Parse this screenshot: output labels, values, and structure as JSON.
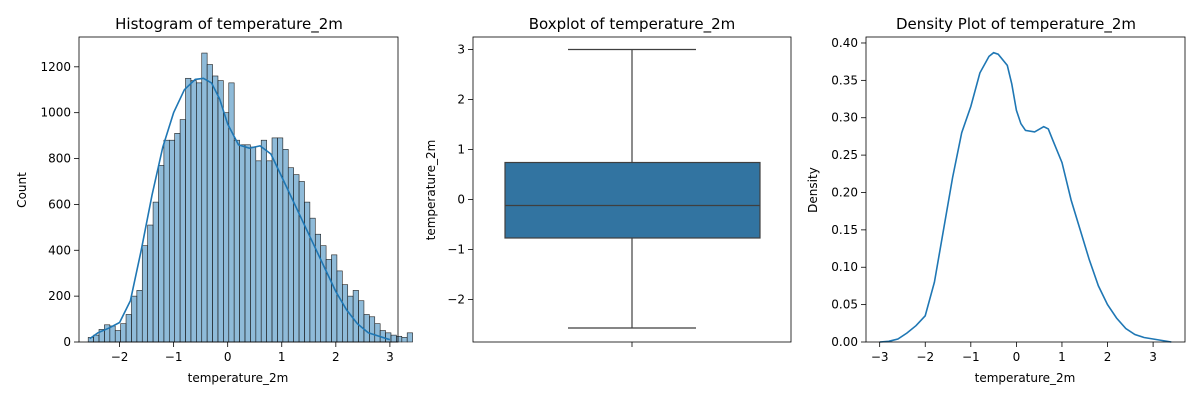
{
  "chart_data": [
    {
      "type": "bar",
      "title": "Histogram of temperature_2m",
      "xlabel": "temperature_2m",
      "ylabel": "Count",
      "xlim": [
        -2.75,
        3.15
      ],
      "ylim": [
        0,
        1330
      ],
      "xticks": [
        -2,
        -1,
        0,
        1,
        2,
        3
      ],
      "yticks": [
        0,
        200,
        400,
        600,
        800,
        1000,
        1200
      ],
      "bin_start": -2.58,
      "bin_width": 0.1,
      "values": [
        20,
        30,
        55,
        75,
        70,
        50,
        80,
        120,
        200,
        225,
        420,
        510,
        610,
        770,
        880,
        880,
        910,
        970,
        1150,
        1140,
        1130,
        1260,
        1210,
        1160,
        1140,
        1000,
        1130,
        880,
        860,
        860,
        850,
        790,
        880,
        790,
        890,
        890,
        840,
        760,
        730,
        700,
        610,
        540,
        470,
        420,
        360,
        380,
        310,
        250,
        200,
        225,
        180,
        120,
        110,
        80,
        50,
        40,
        30,
        25,
        20,
        40
      ],
      "kde": {
        "x": [
          -2.55,
          -2.4,
          -2.2,
          -2.0,
          -1.8,
          -1.6,
          -1.4,
          -1.2,
          -1.0,
          -0.8,
          -0.6,
          -0.45,
          -0.3,
          -0.15,
          0.0,
          0.2,
          0.4,
          0.6,
          0.8,
          1.0,
          1.2,
          1.4,
          1.6,
          1.8,
          2.0,
          2.2,
          2.4,
          2.6,
          2.8,
          3.0
        ],
        "y": [
          15,
          40,
          60,
          85,
          180,
          400,
          640,
          850,
          1000,
          1100,
          1145,
          1150,
          1130,
          1060,
          950,
          860,
          845,
          855,
          820,
          720,
          620,
          520,
          420,
          320,
          220,
          140,
          80,
          40,
          25,
          10
        ]
      }
    },
    {
      "type": "box",
      "title": "Boxplot of temperature_2m",
      "ylabel": "temperature_2m",
      "ylim": [
        -2.85,
        3.25
      ],
      "yticks": [
        -2,
        -1,
        0,
        1,
        2,
        3
      ],
      "whisker_low": -2.57,
      "q1": -0.77,
      "median": -0.12,
      "q3": 0.74,
      "whisker_high": 3.0
    },
    {
      "type": "line",
      "title": "Density Plot of temperature_2m",
      "xlabel": "temperature_2m",
      "ylabel": "Density",
      "xlim": [
        -3.3,
        3.7
      ],
      "ylim": [
        0,
        0.408
      ],
      "xticks": [
        -3,
        -2,
        -1,
        0,
        1,
        2,
        3
      ],
      "yticks": [
        0.0,
        0.05,
        0.1,
        0.15,
        0.2,
        0.25,
        0.3,
        0.35,
        0.4
      ],
      "x": [
        -3.0,
        -2.8,
        -2.6,
        -2.4,
        -2.2,
        -2.0,
        -1.8,
        -1.6,
        -1.4,
        -1.2,
        -1.0,
        -0.8,
        -0.6,
        -0.5,
        -0.4,
        -0.2,
        -0.1,
        0.0,
        0.1,
        0.2,
        0.4,
        0.6,
        0.7,
        0.8,
        1.0,
        1.2,
        1.4,
        1.6,
        1.8,
        2.0,
        2.2,
        2.4,
        2.6,
        2.8,
        3.0,
        3.2,
        3.4
      ],
      "y": [
        0.0,
        0.001,
        0.004,
        0.012,
        0.022,
        0.035,
        0.08,
        0.15,
        0.22,
        0.28,
        0.315,
        0.36,
        0.382,
        0.387,
        0.385,
        0.37,
        0.345,
        0.31,
        0.292,
        0.283,
        0.281,
        0.288,
        0.285,
        0.27,
        0.24,
        0.19,
        0.15,
        0.11,
        0.075,
        0.05,
        0.032,
        0.018,
        0.01,
        0.006,
        0.004,
        0.002,
        0.0
      ]
    }
  ]
}
